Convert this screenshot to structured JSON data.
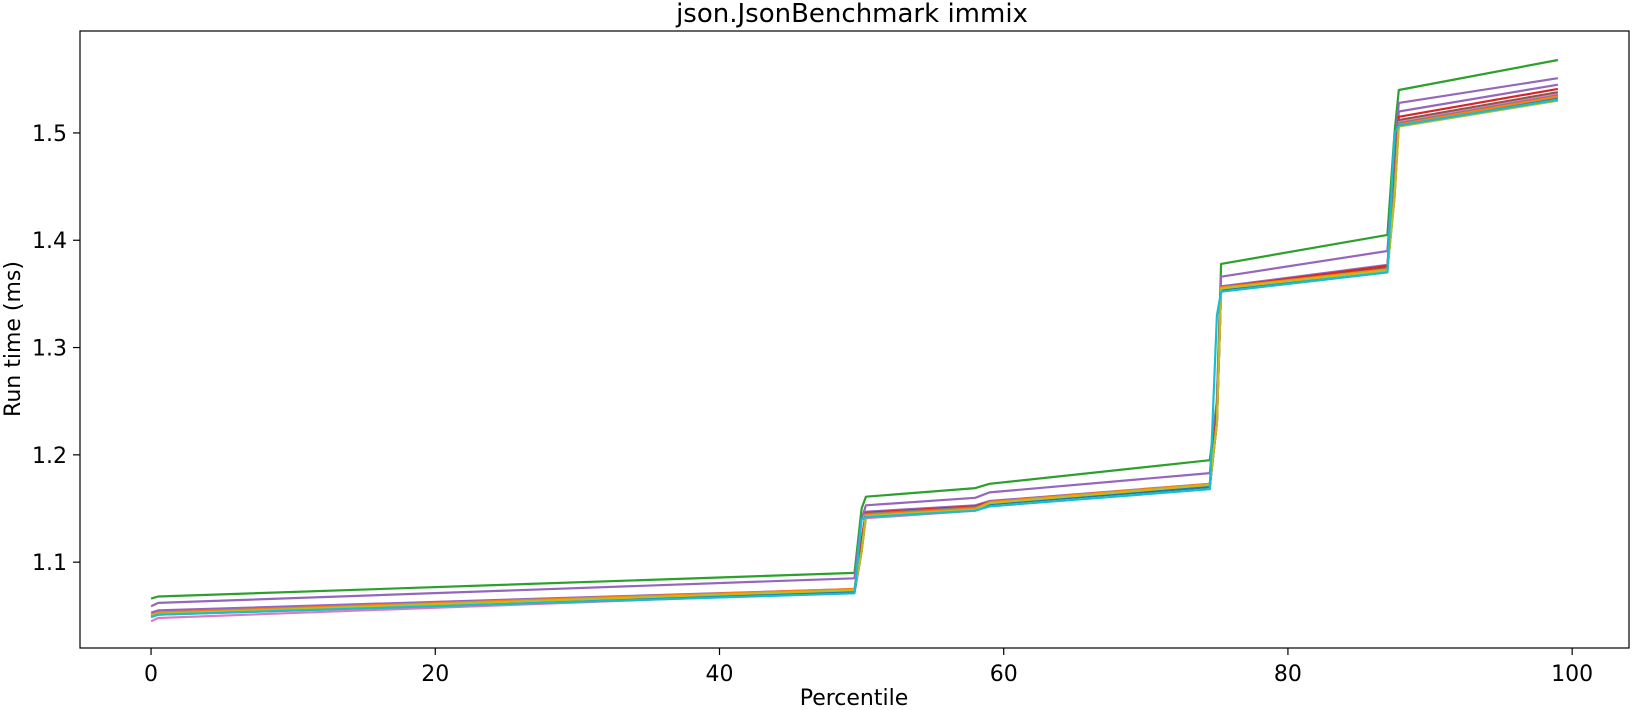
{
  "chart_data": {
    "type": "line",
    "title": "json.JsonBenchmark immix",
    "xlabel": "Percentile",
    "ylabel": "Run time (ms)",
    "xlim": [
      -5,
      104
    ],
    "ylim": [
      1.02,
      1.595
    ],
    "xticks": [
      0,
      20,
      40,
      60,
      80,
      100
    ],
    "yticks": [
      1.1,
      1.2,
      1.3,
      1.4,
      1.5
    ],
    "ytick_labels": [
      "1.1",
      "1.2",
      "1.3",
      "1.4",
      "1.5"
    ],
    "grid": false,
    "legend": "none",
    "x": [
      0,
      0.5,
      49.5,
      50,
      50.3,
      58,
      59,
      74.5,
      75,
      75.3,
      87,
      87.5,
      87.8,
      99
    ],
    "series": [
      {
        "color": "#2ca02c",
        "values": [
          1.066,
          1.068,
          1.09,
          1.15,
          1.161,
          1.169,
          1.173,
          1.195,
          1.25,
          1.378,
          1.405,
          1.5,
          1.54,
          1.568
        ]
      },
      {
        "color": "#9467bd",
        "values": [
          1.059,
          1.062,
          1.085,
          1.14,
          1.153,
          1.16,
          1.165,
          1.183,
          1.25,
          1.366,
          1.39,
          1.48,
          1.528,
          1.551
        ]
      },
      {
        "color": "#9467bd",
        "values": [
          1.053,
          1.055,
          1.075,
          1.12,
          1.147,
          1.153,
          1.157,
          1.173,
          1.24,
          1.357,
          1.377,
          1.46,
          1.52,
          1.545
        ]
      },
      {
        "color": "#d62728",
        "values": [
          1.051,
          1.053,
          1.074,
          1.12,
          1.146,
          1.152,
          1.156,
          1.172,
          1.24,
          1.356,
          1.376,
          1.46,
          1.515,
          1.541
        ]
      },
      {
        "color": "#8c564b",
        "values": [
          1.05,
          1.052,
          1.073,
          1.11,
          1.145,
          1.151,
          1.155,
          1.171,
          1.23,
          1.355,
          1.374,
          1.45,
          1.512,
          1.538
        ]
      },
      {
        "color": "#e377c2",
        "values": [
          1.045,
          1.048,
          1.072,
          1.11,
          1.141,
          1.148,
          1.154,
          1.171,
          1.23,
          1.354,
          1.373,
          1.45,
          1.51,
          1.536
        ]
      },
      {
        "color": "#7f7f7f",
        "values": [
          1.05,
          1.052,
          1.073,
          1.11,
          1.145,
          1.151,
          1.155,
          1.171,
          1.23,
          1.355,
          1.373,
          1.45,
          1.509,
          1.535
        ]
      },
      {
        "color": "#1f77b4",
        "values": [
          1.049,
          1.051,
          1.072,
          1.11,
          1.143,
          1.149,
          1.154,
          1.17,
          1.23,
          1.354,
          1.372,
          1.44,
          1.508,
          1.533
        ]
      },
      {
        "color": "#ff7f0e",
        "values": [
          1.051,
          1.053,
          1.075,
          1.11,
          1.144,
          1.15,
          1.156,
          1.173,
          1.23,
          1.356,
          1.373,
          1.44,
          1.508,
          1.534
        ]
      },
      {
        "color": "#bcbd22",
        "values": [
          1.05,
          1.052,
          1.074,
          1.11,
          1.143,
          1.149,
          1.155,
          1.172,
          1.23,
          1.355,
          1.372,
          1.44,
          1.506,
          1.53
        ]
      },
      {
        "color": "#17becf",
        "values": [
          1.049,
          1.051,
          1.071,
          1.14,
          1.142,
          1.148,
          1.152,
          1.168,
          1.33,
          1.352,
          1.37,
          1.5,
          1.507,
          1.531
        ]
      }
    ]
  }
}
